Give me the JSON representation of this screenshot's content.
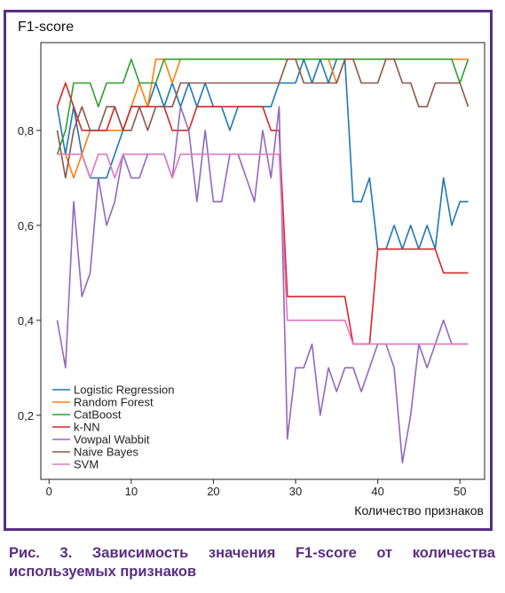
{
  "caption": "Рис. 3. Зависимость значения F1-score от количества используемых признаков",
  "chart_data": {
    "type": "line",
    "ylabel": "F1-score",
    "xlabel": "Количество признаков",
    "xlim": [
      -1,
      53
    ],
    "ylim": [
      0.065,
      0.985
    ],
    "xticks": [
      0,
      10,
      20,
      30,
      40,
      50
    ],
    "yticks": [
      0.2,
      0.4,
      0.6,
      0.8
    ],
    "ytick_labels": [
      "0,2",
      "0,4",
      "0,6",
      "0,8"
    ],
    "xtick_labels": [
      "0",
      "10",
      "20",
      "30",
      "40",
      "50"
    ],
    "grid": false,
    "legend_position": "lower-left",
    "x": [
      1,
      2,
      3,
      4,
      5,
      6,
      7,
      8,
      9,
      10,
      11,
      12,
      13,
      14,
      15,
      16,
      17,
      18,
      19,
      20,
      21,
      22,
      23,
      24,
      25,
      26,
      27,
      28,
      29,
      30,
      31,
      32,
      33,
      34,
      35,
      36,
      37,
      38,
      39,
      40,
      41,
      42,
      43,
      44,
      45,
      46,
      47,
      48,
      49,
      50,
      51
    ],
    "series": [
      {
        "name": "Logistic Regression",
        "color": "#1f77b4",
        "values": [
          0.85,
          0.75,
          0.85,
          0.75,
          0.7,
          0.7,
          0.7,
          0.75,
          0.8,
          0.85,
          0.85,
          0.85,
          0.9,
          0.85,
          0.9,
          0.85,
          0.9,
          0.85,
          0.9,
          0.85,
          0.85,
          0.8,
          0.85,
          0.85,
          0.85,
          0.85,
          0.85,
          0.9,
          0.9,
          0.9,
          0.95,
          0.9,
          0.95,
          0.9,
          0.95,
          0.95,
          0.65,
          0.65,
          0.7,
          0.55,
          0.55,
          0.6,
          0.55,
          0.6,
          0.55,
          0.6,
          0.55,
          0.7,
          0.6,
          0.65,
          0.65
        ]
      },
      {
        "name": "Random Forest",
        "color": "#ff7f0e",
        "values": [
          0.75,
          0.75,
          0.7,
          0.75,
          0.8,
          0.8,
          0.8,
          0.8,
          0.8,
          0.85,
          0.9,
          0.85,
          0.95,
          0.95,
          0.9,
          0.95,
          0.95,
          0.95,
          0.95,
          0.95,
          0.95,
          0.95,
          0.95,
          0.95,
          0.95,
          0.95,
          0.95,
          0.95,
          0.95,
          0.95,
          0.95,
          0.95,
          0.95,
          0.95,
          0.9,
          0.95,
          0.95,
          0.95,
          0.95,
          0.95,
          0.95,
          0.95,
          0.95,
          0.95,
          0.95,
          0.95,
          0.95,
          0.95,
          0.95,
          0.95,
          0.95
        ]
      },
      {
        "name": "CatBoost",
        "color": "#2ca02c",
        "values": [
          0.75,
          0.8,
          0.9,
          0.9,
          0.9,
          0.85,
          0.9,
          0.9,
          0.9,
          0.95,
          0.9,
          0.9,
          0.9,
          0.95,
          0.95,
          0.95,
          0.95,
          0.95,
          0.95,
          0.95,
          0.95,
          0.95,
          0.95,
          0.95,
          0.95,
          0.95,
          0.95,
          0.95,
          0.95,
          0.95,
          0.95,
          0.95,
          0.95,
          0.95,
          0.95,
          0.95,
          0.95,
          0.95,
          0.95,
          0.95,
          0.95,
          0.95,
          0.95,
          0.95,
          0.95,
          0.95,
          0.95,
          0.95,
          0.95,
          0.9,
          0.95
        ]
      },
      {
        "name": "k-NN",
        "color": "#d62728",
        "values": [
          0.85,
          0.9,
          0.85,
          0.8,
          0.8,
          0.8,
          0.8,
          0.85,
          0.8,
          0.85,
          0.85,
          0.85,
          0.85,
          0.85,
          0.8,
          0.8,
          0.8,
          0.85,
          0.85,
          0.85,
          0.85,
          0.85,
          0.85,
          0.85,
          0.85,
          0.85,
          0.8,
          0.8,
          0.45,
          0.45,
          0.45,
          0.45,
          0.45,
          0.45,
          0.45,
          0.45,
          0.35,
          0.35,
          0.35,
          0.55,
          0.55,
          0.55,
          0.55,
          0.55,
          0.55,
          0.55,
          0.55,
          0.5,
          0.5,
          0.5,
          0.5
        ]
      },
      {
        "name": "Vowpal Wabbit",
        "color": "#9467bd",
        "values": [
          0.4,
          0.3,
          0.65,
          0.45,
          0.5,
          0.7,
          0.6,
          0.65,
          0.75,
          0.7,
          0.7,
          0.75,
          0.75,
          0.75,
          0.7,
          0.85,
          0.8,
          0.65,
          0.8,
          0.65,
          0.65,
          0.75,
          0.75,
          0.7,
          0.65,
          0.8,
          0.7,
          0.85,
          0.15,
          0.3,
          0.3,
          0.35,
          0.2,
          0.3,
          0.25,
          0.3,
          0.3,
          0.25,
          0.3,
          0.35,
          0.35,
          0.3,
          0.1,
          0.2,
          0.35,
          0.3,
          0.35,
          0.4,
          0.35,
          0.35,
          0.35
        ]
      },
      {
        "name": "Naive Bayes",
        "color": "#8c564b",
        "values": [
          0.8,
          0.7,
          0.8,
          0.85,
          0.8,
          0.8,
          0.85,
          0.85,
          0.8,
          0.8,
          0.85,
          0.8,
          0.85,
          0.85,
          0.85,
          0.9,
          0.9,
          0.9,
          0.9,
          0.9,
          0.9,
          0.9,
          0.9,
          0.9,
          0.9,
          0.9,
          0.9,
          0.9,
          0.95,
          0.95,
          0.9,
          0.9,
          0.9,
          0.9,
          0.9,
          0.95,
          0.95,
          0.9,
          0.9,
          0.9,
          0.95,
          0.95,
          0.9,
          0.9,
          0.85,
          0.85,
          0.9,
          0.9,
          0.9,
          0.9,
          0.85
        ]
      },
      {
        "name": "SVM",
        "color": "#e377c2",
        "values": [
          0.75,
          0.75,
          0.75,
          0.75,
          0.7,
          0.75,
          0.75,
          0.7,
          0.75,
          0.75,
          0.75,
          0.75,
          0.75,
          0.75,
          0.7,
          0.75,
          0.75,
          0.75,
          0.75,
          0.75,
          0.75,
          0.75,
          0.75,
          0.75,
          0.75,
          0.75,
          0.75,
          0.75,
          0.4,
          0.4,
          0.4,
          0.4,
          0.4,
          0.4,
          0.4,
          0.4,
          0.35,
          0.35,
          0.35,
          0.35,
          0.35,
          0.35,
          0.35,
          0.35,
          0.35,
          0.35,
          0.35,
          0.35,
          0.35,
          0.35,
          0.35
        ]
      }
    ]
  }
}
